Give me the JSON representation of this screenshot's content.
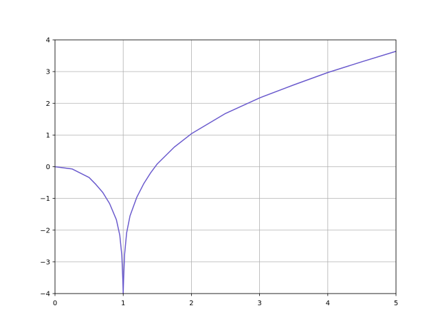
{
  "chart_data": {
    "type": "line",
    "title": "",
    "xlabel": "",
    "ylabel": "",
    "xlim": [
      0,
      5
    ],
    "ylim": [
      -4,
      4
    ],
    "x_ticks": [
      0,
      1,
      2,
      3,
      4,
      5
    ],
    "y_ticks": [
      -4,
      -3,
      -2,
      -1,
      0,
      1,
      2,
      3,
      4
    ],
    "x_tick_labels": [
      "0",
      "1",
      "2",
      "3",
      "4",
      "5"
    ],
    "y_tick_labels": [
      "−4",
      "−3",
      "−2",
      "−1",
      "0",
      "1",
      "2",
      "3",
      "4"
    ],
    "grid": true,
    "legend": "none",
    "series": [
      {
        "color": "#6a5acd",
        "x": [
          0,
          0.25,
          0.5,
          0.6,
          0.7,
          0.8,
          0.9,
          0.95,
          0.98,
          0.995,
          1.0,
          1.005,
          1.02,
          1.05,
          1.1,
          1.2,
          1.3,
          1.4,
          1.5,
          1.75,
          2.0,
          2.5,
          3.0,
          3.5,
          4.0,
          4.5,
          5.0
        ],
        "y": [
          0,
          -0.07,
          -0.34,
          -0.56,
          -0.81,
          -1.16,
          -1.67,
          -2.16,
          -2.8,
          -3.6,
          -4.0,
          -3.6,
          -2.78,
          -2.09,
          -1.55,
          -0.96,
          -0.54,
          -0.2,
          0.09,
          0.62,
          1.04,
          1.68,
          2.17,
          2.58,
          2.97,
          3.31,
          3.64
        ]
      }
    ]
  }
}
